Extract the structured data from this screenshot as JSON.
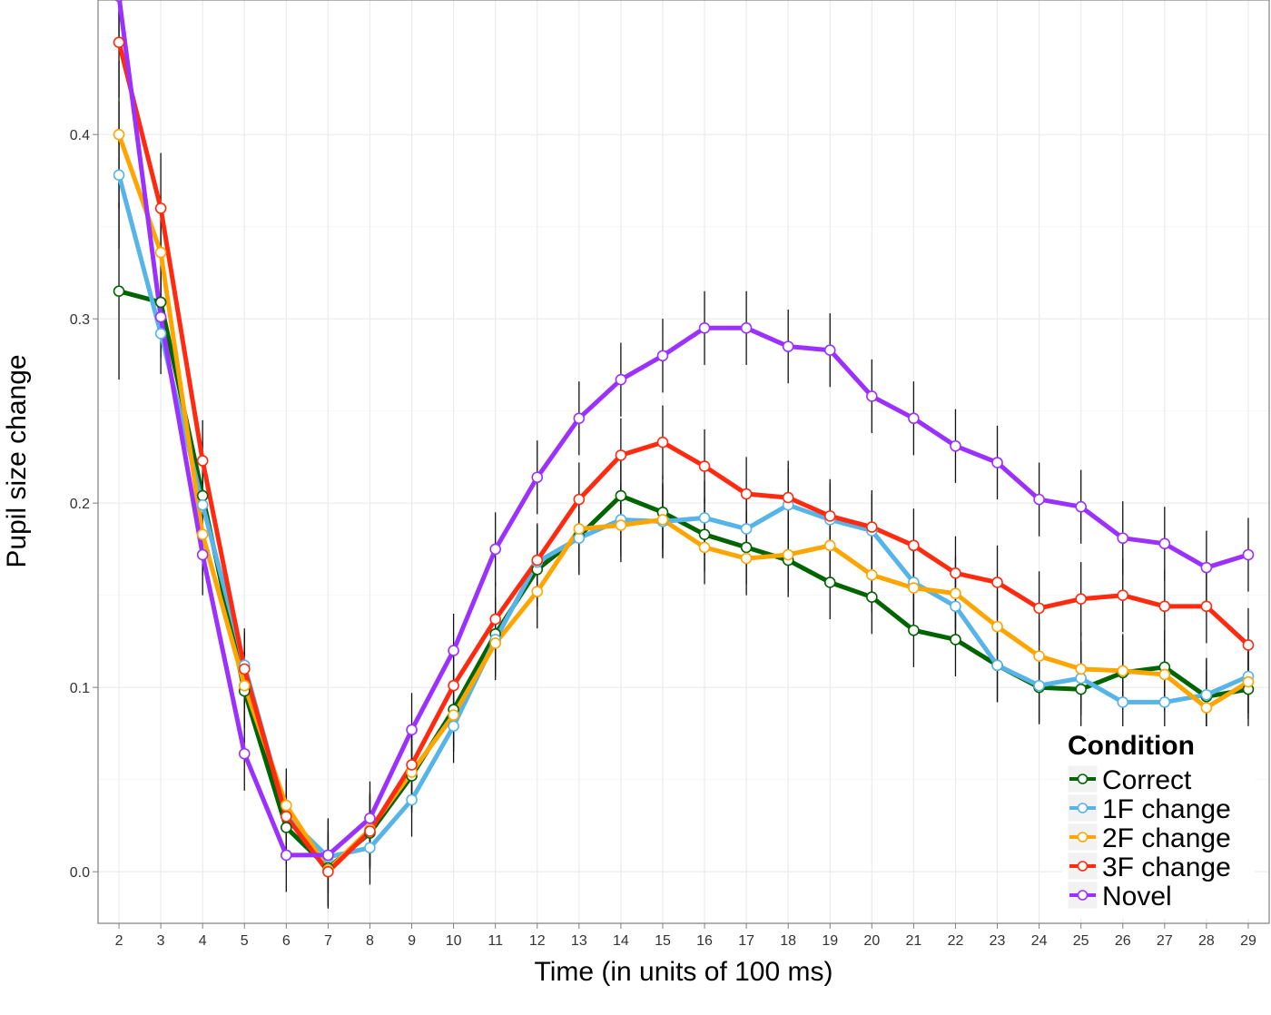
{
  "chart_data": {
    "type": "line",
    "title": "",
    "xlabel": "Time (in units of 100 ms)",
    "ylabel": "Pupil size change",
    "x": [
      2,
      3,
      4,
      5,
      6,
      7,
      8,
      9,
      10,
      11,
      12,
      13,
      14,
      15,
      16,
      17,
      18,
      19,
      20,
      21,
      22,
      23,
      24,
      25,
      26,
      27,
      28,
      29
    ],
    "xlim": [
      1.5,
      29.5
    ],
    "ylim": [
      -0.028,
      0.473
    ],
    "yticks": [
      0.0,
      0.1,
      0.2,
      0.3,
      0.4
    ],
    "ytick_labels": [
      "0.0",
      "0.1",
      "0.2",
      "0.3",
      "0.4"
    ],
    "xtick_labels": [
      "2",
      "3",
      "4",
      "5",
      "6",
      "7",
      "8",
      "9",
      "10",
      "11",
      "12",
      "13",
      "14",
      "15",
      "16",
      "17",
      "18",
      "19",
      "20",
      "21",
      "22",
      "23",
      "24",
      "25",
      "26",
      "27",
      "28",
      "29"
    ],
    "grid": true,
    "error_bars": true,
    "legend": {
      "title": "Condition",
      "position": "bottom-right"
    },
    "series": [
      {
        "name": "Correct",
        "color": "#006400",
        "values": [
          0.315,
          0.309,
          0.204,
          0.098,
          0.024,
          0.002,
          0.021,
          0.052,
          0.088,
          0.129,
          0.164,
          0.182,
          0.204,
          0.195,
          0.183,
          0.176,
          0.169,
          0.157,
          0.149,
          0.131,
          0.126,
          0.112,
          0.1,
          0.099,
          0.108,
          0.111,
          0.095,
          0.099
        ],
        "errors": [
          0.048,
          0.022,
          0.022,
          0.02,
          0.02,
          0.02,
          0.02,
          0.02,
          0.02,
          0.02,
          0.02,
          0.02,
          0.02,
          0.02,
          0.02,
          0.02,
          0.02,
          0.02,
          0.02,
          0.02,
          0.02,
          0.02,
          0.02,
          0.02,
          0.02,
          0.02,
          0.02,
          0.02
        ]
      },
      {
        "name": "1F change",
        "color": "#56B4E9",
        "values": [
          0.378,
          0.292,
          0.199,
          0.112,
          0.03,
          0.008,
          0.013,
          0.039,
          0.079,
          0.126,
          0.168,
          0.181,
          0.191,
          0.19,
          0.192,
          0.186,
          0.199,
          0.191,
          0.185,
          0.157,
          0.144,
          0.112,
          0.101,
          0.105,
          0.092,
          0.092,
          0.096,
          0.106
        ],
        "errors": [
          0.04,
          0.022,
          0.022,
          0.02,
          0.02,
          0.02,
          0.02,
          0.02,
          0.02,
          0.02,
          0.02,
          0.02,
          0.02,
          0.02,
          0.02,
          0.02,
          0.02,
          0.02,
          0.02,
          0.02,
          0.02,
          0.02,
          0.02,
          0.02,
          0.02,
          0.02,
          0.02,
          0.02
        ]
      },
      {
        "name": "2F change",
        "color": "#FFA500",
        "values": [
          0.4,
          0.336,
          0.183,
          0.101,
          0.036,
          0.001,
          0.023,
          0.054,
          0.085,
          0.124,
          0.152,
          0.186,
          0.188,
          0.191,
          0.176,
          0.17,
          0.172,
          0.177,
          0.161,
          0.154,
          0.151,
          0.133,
          0.117,
          0.11,
          0.109,
          0.107,
          0.089,
          0.103
        ],
        "errors": [
          0.04,
          0.022,
          0.022,
          0.02,
          0.02,
          0.02,
          0.02,
          0.02,
          0.02,
          0.02,
          0.02,
          0.02,
          0.02,
          0.02,
          0.02,
          0.02,
          0.02,
          0.02,
          0.02,
          0.02,
          0.02,
          0.02,
          0.02,
          0.02,
          0.02,
          0.02,
          0.02,
          0.02
        ]
      },
      {
        "name": "3F change",
        "color": "#FF2A10",
        "values": [
          0.45,
          0.36,
          0.223,
          0.11,
          0.03,
          0.0,
          0.022,
          0.058,
          0.101,
          0.137,
          0.169,
          0.202,
          0.226,
          0.233,
          0.22,
          0.205,
          0.203,
          0.193,
          0.187,
          0.177,
          0.162,
          0.157,
          0.143,
          0.148,
          0.15,
          0.144,
          0.144,
          0.123
        ],
        "errors": [
          0.03,
          0.03,
          0.022,
          0.02,
          0.02,
          0.02,
          0.02,
          0.02,
          0.02,
          0.02,
          0.02,
          0.02,
          0.02,
          0.02,
          0.02,
          0.02,
          0.02,
          0.02,
          0.02,
          0.02,
          0.02,
          0.02,
          0.02,
          0.02,
          0.02,
          0.02,
          0.02,
          0.02
        ]
      },
      {
        "name": "Novel",
        "color": "#9B30FF",
        "values": [
          0.475,
          0.301,
          0.172,
          0.064,
          0.009,
          0.009,
          0.029,
          0.077,
          0.12,
          0.175,
          0.214,
          0.246,
          0.267,
          0.28,
          0.295,
          0.295,
          0.285,
          0.283,
          0.258,
          0.246,
          0.231,
          0.222,
          0.202,
          0.198,
          0.181,
          0.178,
          0.165,
          0.172
        ],
        "errors": [
          0.03,
          0.022,
          0.022,
          0.02,
          0.02,
          0.02,
          0.02,
          0.02,
          0.02,
          0.02,
          0.02,
          0.02,
          0.02,
          0.02,
          0.02,
          0.02,
          0.02,
          0.02,
          0.02,
          0.02,
          0.02,
          0.02,
          0.02,
          0.02,
          0.02,
          0.02,
          0.02,
          0.02
        ]
      }
    ]
  }
}
